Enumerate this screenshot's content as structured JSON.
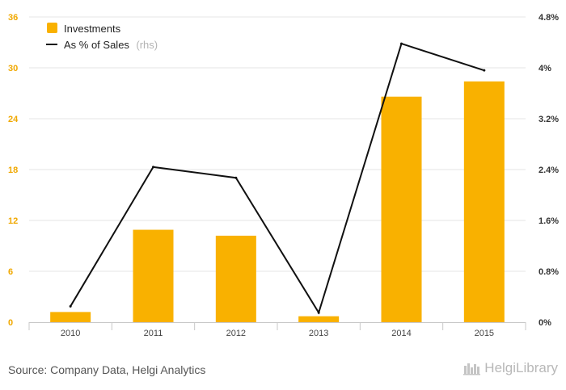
{
  "chart_data": {
    "type": "bar+line",
    "categories": [
      "2010",
      "2011",
      "2012",
      "2013",
      "2014",
      "2015"
    ],
    "series": [
      {
        "name": "Investments",
        "type": "bar",
        "axis": "left",
        "color": "#f9b100",
        "values": [
          1.2,
          10.9,
          10.2,
          0.7,
          26.6,
          28.4
        ]
      },
      {
        "name": "As % of Sales",
        "note": "(rhs)",
        "type": "line",
        "axis": "right",
        "color": "#111111",
        "values": [
          0.25,
          2.44,
          2.27,
          0.15,
          4.38,
          3.96
        ]
      }
    ],
    "left_axis": {
      "ticks": [
        "0",
        "6",
        "12",
        "18",
        "24",
        "30",
        "36"
      ],
      "min": 0,
      "max": 36
    },
    "right_axis": {
      "ticks": [
        "0%",
        "0.8%",
        "1.6%",
        "2.4%",
        "3.2%",
        "4%",
        "4.8%"
      ],
      "min": 0,
      "max": 4.8
    },
    "grid": true,
    "legend_position": "top-left"
  },
  "footer": {
    "source": "Source: Company Data, Helgi Analytics",
    "logo_text": "HelgiLibrary"
  }
}
